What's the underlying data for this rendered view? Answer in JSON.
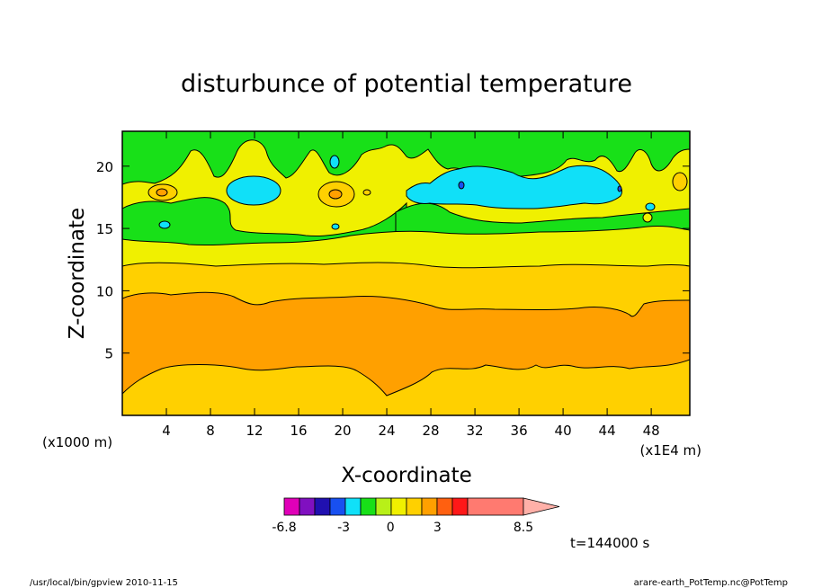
{
  "chart_data": {
    "type": "heatmap",
    "subtype": "filled-contour",
    "title": "disturbunce of potential temperature",
    "xlabel": "X-coordinate",
    "ylabel": "Z-coordinate",
    "x_unit_left": "(x1000 m)",
    "x_unit_right": "(x1E4 m)",
    "xlim": [
      0,
      51.5
    ],
    "ylim": [
      0,
      22.8
    ],
    "xticks": [
      "4",
      "8",
      "12",
      "16",
      "20",
      "24",
      "28",
      "32",
      "36",
      "40",
      "44",
      "48"
    ],
    "xtick_values": [
      4,
      8,
      12,
      16,
      20,
      24,
      28,
      32,
      36,
      40,
      44,
      48
    ],
    "yticks": [
      "5",
      "10",
      "15",
      "20"
    ],
    "ytick_values": [
      5,
      10,
      15,
      20
    ],
    "grid": false,
    "colorbar": {
      "colors": [
        "#e000b8",
        "#8010c0",
        "#2010b0",
        "#1850f0",
        "#10e0f8",
        "#18e018",
        "#b8f018",
        "#f0f000",
        "#ffd000",
        "#ffa000",
        "#ff6010",
        "#ff1818",
        "#ff7a70",
        "#ffb0a8"
      ],
      "labels": [
        "-6.8",
        "-3",
        "0",
        "3",
        "8.5"
      ],
      "label_values": [
        -6.8,
        -3,
        0,
        3,
        8.5
      ],
      "range": [
        -6.8,
        8.5
      ]
    },
    "bands": [
      {
        "name": "orange core",
        "color": "#ffa000",
        "z_range": [
          2.5,
          9.8
        ]
      },
      {
        "name": "gold",
        "color": "#ffd000",
        "z_range": [
          0,
          12.5
        ]
      },
      {
        "name": "yellow",
        "color": "#f0f000",
        "z_range": [
          12.5,
          14.5
        ]
      },
      {
        "name": "green",
        "color": "#18e018",
        "z_range": [
          14.5,
          22.8
        ]
      },
      {
        "name": "cyan anomaly",
        "color": "#10e0f8",
        "x_range": [
          24,
          45
        ],
        "z_range": [
          16.5,
          19.5
        ]
      }
    ],
    "time_label": "t=144000 s"
  },
  "footer": {
    "left": "/usr/local/bin/gpview  2010-11-15",
    "right": "arare-earth_PotTemp.nc@PotTemp"
  }
}
